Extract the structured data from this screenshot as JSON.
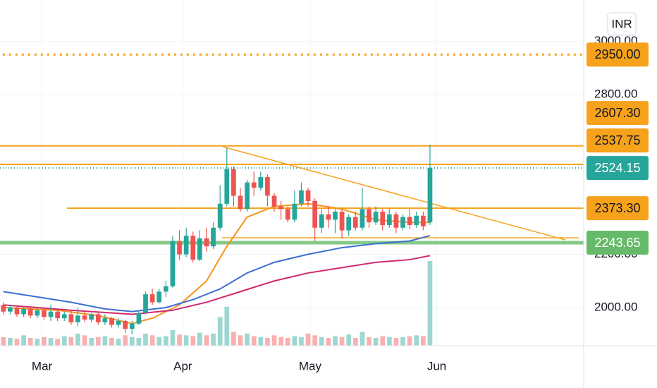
{
  "chart_data": {
    "type": "candlestick",
    "currency": "INR",
    "up_color": "#26a69a",
    "down_color": "#ef5350",
    "open": [
      2010,
      1985,
      2000,
      1975,
      1995,
      1970,
      1990,
      1965,
      1985,
      1960,
      1975,
      1945,
      1970,
      1955,
      1975,
      1945,
      1960,
      1935,
      1950,
      1920,
      1940,
      1980,
      2050,
      2020,
      2060,
      2080,
      2250,
      2200,
      2270,
      2180,
      2260,
      2230,
      2300,
      2390,
      2520,
      2420,
      2370,
      2470,
      2450,
      2490,
      2420,
      2380,
      2370,
      2330,
      2390,
      2440,
      2400,
      2300,
      2350,
      2330,
      2360,
      2290,
      2340,
      2300,
      2370,
      2320,
      2360,
      2310,
      2350,
      2300,
      2340,
      2310,
      2345,
      2320
    ],
    "high": [
      2020,
      2010,
      2005,
      2005,
      2000,
      2000,
      1995,
      2010,
      1990,
      1985,
      1990,
      2000,
      1985,
      1980,
      1980,
      1975,
      1965,
      1960,
      1955,
      1950,
      1990,
      2060,
      2070,
      2070,
      2100,
      2270,
      2290,
      2300,
      2285,
      2290,
      2300,
      2320,
      2460,
      2600,
      2530,
      2450,
      2480,
      2510,
      2510,
      2500,
      2430,
      2400,
      2380,
      2440,
      2470,
      2450,
      2410,
      2370,
      2380,
      2370,
      2370,
      2350,
      2360,
      2450,
      2380,
      2380,
      2370,
      2370,
      2360,
      2350,
      2370,
      2360,
      2360,
      2612
    ],
    "low": [
      1975,
      1975,
      1965,
      1965,
      1960,
      1960,
      1955,
      1950,
      1950,
      1950,
      1935,
      1930,
      1945,
      1945,
      1935,
      1935,
      1925,
      1925,
      1905,
      1900,
      1935,
      1975,
      2010,
      2015,
      2040,
      2075,
      2180,
      2190,
      2170,
      2175,
      2210,
      2220,
      2290,
      2380,
      2380,
      2360,
      2360,
      2420,
      2440,
      2380,
      2360,
      2330,
      2320,
      2320,
      2380,
      2380,
      2250,
      2280,
      2300,
      2280,
      2260,
      2270,
      2290,
      2290,
      2300,
      2310,
      2290,
      2300,
      2280,
      2290,
      2295,
      2300,
      2290,
      2310
    ],
    "close": [
      1985,
      2000,
      1975,
      1995,
      1970,
      1990,
      1965,
      1985,
      1960,
      1975,
      1945,
      1970,
      1955,
      1975,
      1945,
      1960,
      1935,
      1950,
      1920,
      1940,
      1980,
      2050,
      2020,
      2060,
      2080,
      2250,
      2200,
      2270,
      2180,
      2260,
      2230,
      2300,
      2390,
      2520,
      2420,
      2370,
      2470,
      2450,
      2490,
      2420,
      2380,
      2370,
      2330,
      2390,
      2440,
      2400,
      2300,
      2350,
      2330,
      2360,
      2290,
      2340,
      2300,
      2370,
      2320,
      2360,
      2310,
      2350,
      2300,
      2340,
      2310,
      2345,
      2305,
      2524.15
    ],
    "volume": [
      10,
      9,
      8,
      12,
      9,
      8,
      10,
      9,
      8,
      11,
      10,
      14,
      12,
      9,
      10,
      11,
      9,
      8,
      12,
      10,
      9,
      14,
      12,
      10,
      11,
      18,
      13,
      12,
      11,
      15,
      12,
      14,
      33,
      45,
      16,
      12,
      14,
      11,
      10,
      9,
      12,
      10,
      9,
      11,
      10,
      14,
      12,
      10,
      9,
      11,
      10,
      13,
      9,
      16,
      10,
      9,
      11,
      10,
      9,
      10,
      11,
      12,
      11,
      98
    ],
    "volume_lim": [
      0,
      400
    ],
    "moving_averages": [
      {
        "color": "#f7931a",
        "x": [
          0,
          8,
          14,
          19,
          22,
          26,
          30,
          33,
          36,
          40,
          45,
          50,
          55,
          60,
          63
        ],
        "values": [
          2000,
          1990,
          1970,
          1940,
          1960,
          2010,
          2100,
          2230,
          2340,
          2380,
          2390,
          2370,
          2330,
          2320,
          2320
        ]
      },
      {
        "color": "#3d6fd1",
        "x": [
          0,
          5,
          10,
          15,
          19,
          24,
          28,
          32,
          36,
          40,
          45,
          50,
          55,
          60,
          63
        ],
        "values": [
          2060,
          2040,
          2020,
          1995,
          1985,
          2000,
          2030,
          2070,
          2130,
          2170,
          2200,
          2225,
          2240,
          2250,
          2270
        ]
      },
      {
        "color": "#d0296e",
        "x": [
          0,
          10,
          19,
          25,
          30,
          35,
          40,
          45,
          50,
          55,
          60,
          63
        ],
        "values": [
          2010,
          1990,
          1975,
          1990,
          2020,
          2060,
          2100,
          2130,
          2150,
          2170,
          2180,
          2195
        ]
      }
    ],
    "levels": [
      {
        "value": 2950,
        "label": "2950.00",
        "color": "#f7a21b",
        "style": "dotted",
        "from": -0.1
      },
      {
        "value": 2607.3,
        "label": "2607.30",
        "color": "#f7a21b",
        "style": "solid",
        "from": -0.5
      },
      {
        "value": 2537.75,
        "label": "2537.75",
        "color": "#f7a21b",
        "style": "solid",
        "from": -0.5
      },
      {
        "value": 2524.15,
        "label": "2524.15",
        "color": "#26a69a",
        "style": "dotted",
        "from": -0.5
      },
      {
        "value": 2373.3,
        "label": "2373.30",
        "color": "#f7a21b",
        "style": "solid",
        "from": 9.4
      },
      {
        "value": 2243.65,
        "label": "2243.65",
        "color": "#66bb6a",
        "style": "thick",
        "from": -0.5
      }
    ],
    "trendlines": [
      {
        "color": "#f7a21b",
        "x": [
          32.4,
          83
        ],
        "values": [
          2604,
          2254
        ]
      },
      {
        "color": "#f7a21b",
        "x": [
          32.3,
          85
        ],
        "values": [
          2262,
          2262
        ]
      }
    ],
    "xlim": [
      -0.5,
      85.7
    ],
    "ylim": [
      1857,
      3155
    ],
    "yticks": [
      {
        "value": 2000,
        "label": "2000.00"
      },
      {
        "value": 2200,
        "label": "2200.00"
      },
      {
        "value": 2800,
        "label": "2800.00"
      },
      {
        "value": 3000,
        "label": "3000.00"
      }
    ],
    "xticks": [
      {
        "value": 5.7,
        "label": "Mar"
      },
      {
        "value": 26.5,
        "label": "Apr"
      },
      {
        "value": 45.3,
        "label": "May"
      },
      {
        "value": 64,
        "label": "Jun"
      }
    ],
    "grid": true
  }
}
